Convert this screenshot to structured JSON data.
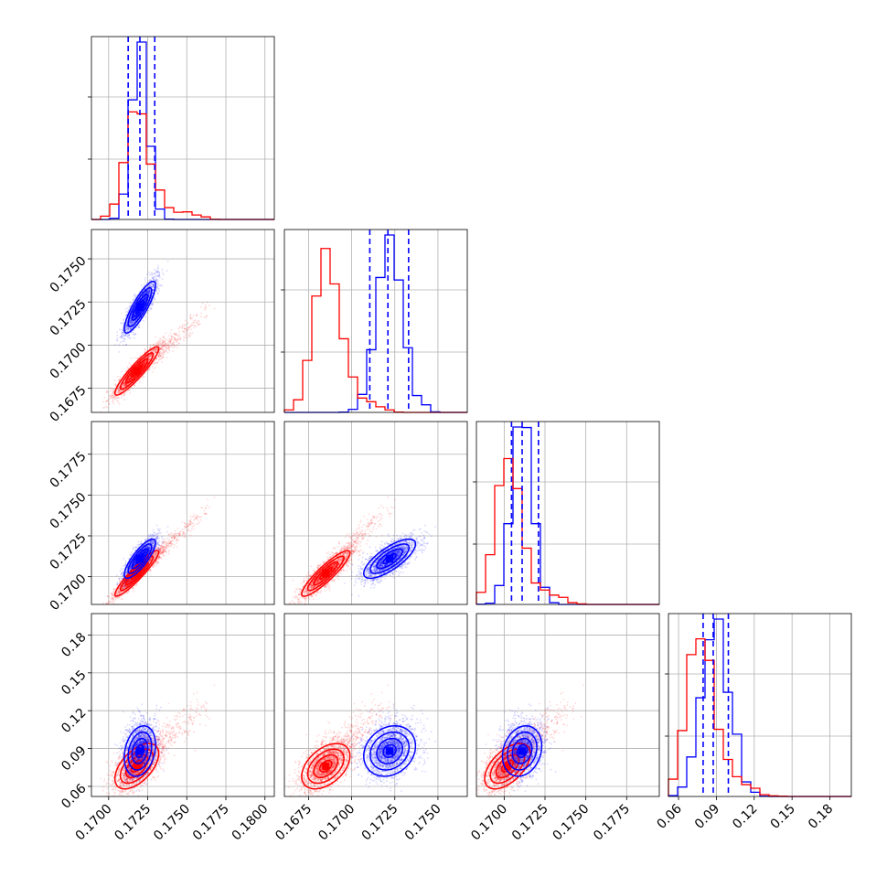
{
  "figure": {
    "type": "corner-plot",
    "colors": {
      "red": "#ff0000",
      "blue": "#0000ff",
      "grid": "#b0b0b0",
      "axis": "#000000"
    }
  },
  "chart_data": {
    "type": "corner",
    "grid": true,
    "parameters": [
      {
        "id": "p1",
        "range": [
          0.1689,
          0.1806
        ],
        "ticks": [
          "0.1700",
          "0.1725",
          "0.1750",
          "0.1775",
          "0.1800"
        ],
        "tick_values": [
          0.17,
          0.1725,
          0.175,
          0.1775,
          0.18
        ]
      },
      {
        "id": "p2",
        "range": [
          0.1661,
          0.1767
        ],
        "ticks": [
          "0.1675",
          "0.1700",
          "0.1725",
          "0.1750"
        ],
        "tick_values": [
          0.1675,
          0.17,
          0.1725,
          0.175
        ]
      },
      {
        "id": "p3",
        "range": [
          0.1683,
          0.1795
        ],
        "ticks": [
          "0.1700",
          "0.1725",
          "0.1750",
          "0.1775"
        ],
        "tick_values": [
          0.17,
          0.1725,
          0.175,
          0.1775
        ]
      },
      {
        "id": "p4",
        "range": [
          0.052,
          0.197
        ],
        "ticks": [
          "0.06",
          "0.09",
          "0.12",
          "0.15",
          "0.18"
        ],
        "tick_values": [
          0.06,
          0.09,
          0.12,
          0.15,
          0.18
        ]
      }
    ],
    "series": [
      {
        "color": "red",
        "means": [
          0.1718,
          0.1685,
          0.1702,
          0.076
        ],
        "sds": [
          0.0007,
          0.0007,
          0.0007,
          0.009
        ],
        "right_tail": [
          0.004,
          0.003,
          0.0035,
          0.045
        ],
        "corr": [
          [
            0,
            0.92,
            0.93,
            0.55
          ],
          [
            0.92,
            0,
            0.9,
            0.45
          ],
          [
            0.93,
            0.9,
            0,
            0.55
          ],
          [
            0.55,
            0.45,
            0.55,
            0
          ]
        ]
      },
      {
        "color": "blue",
        "means": [
          0.172,
          0.1722,
          0.1711,
          0.088
        ],
        "sds": [
          0.0005,
          0.00075,
          0.0006,
          0.01
        ],
        "right_tail": [
          0,
          0,
          0,
          0
        ],
        "corr": [
          [
            0,
            0.85,
            0.82,
            0.25
          ],
          [
            0.85,
            0,
            0.75,
            0.2
          ],
          [
            0.82,
            0.75,
            0,
            0.2
          ],
          [
            0.25,
            0.2,
            0.2,
            0
          ]
        ]
      }
    ],
    "quantile_lines": {
      "color": "blue",
      "style": "dashed",
      "values": [
        [
          0.17125,
          0.172,
          0.17295
        ],
        [
          0.17105,
          0.1721,
          0.1733
        ],
        [
          0.17045,
          0.1711,
          0.1721
        ],
        [
          0.0795,
          0.0875,
          0.0995
        ]
      ]
    }
  }
}
